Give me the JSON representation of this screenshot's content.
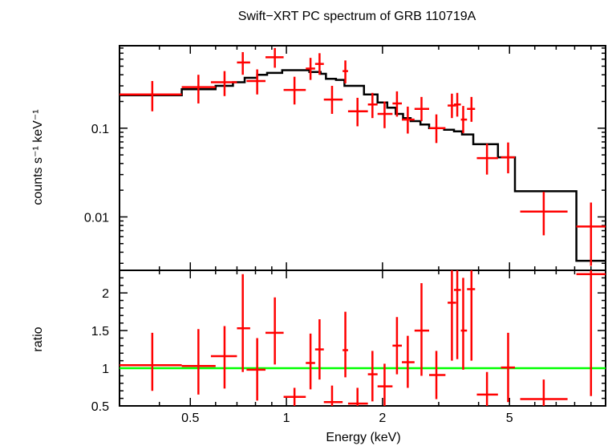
{
  "title": "Swift−XRT PC spectrum of GRB 110719A",
  "colors": {
    "data": "#ff0000",
    "model": "#000000",
    "unity": "#00ff00",
    "frame": "#000000"
  },
  "chart_data": [
    {
      "type": "scatter",
      "panel": "spectrum",
      "ylabel": "counts s⁻¹ keV⁻¹",
      "yscale": "log",
      "xscale": "log",
      "xlim": [
        0.3,
        10.0
      ],
      "ylim": [
        0.0025,
        0.85
      ],
      "yticks": [
        {
          "value": 0.01,
          "label": "0.01"
        },
        {
          "value": 0.1,
          "label": "0.1"
        }
      ],
      "series": [
        {
          "kind": "data",
          "points": [
            {
              "x": 0.38,
              "xlo": 0.3,
              "xhi": 0.47,
              "y": 0.24,
              "ylo": 0.155,
              "yhi": 0.34
            },
            {
              "x": 0.53,
              "xlo": 0.47,
              "xhi": 0.6,
              "y": 0.29,
              "ylo": 0.19,
              "yhi": 0.4
            },
            {
              "x": 0.64,
              "xlo": 0.58,
              "xhi": 0.7,
              "y": 0.33,
              "ylo": 0.23,
              "yhi": 0.44
            },
            {
              "x": 0.73,
              "xlo": 0.7,
              "xhi": 0.77,
              "y": 0.55,
              "ylo": 0.4,
              "yhi": 0.72
            },
            {
              "x": 0.81,
              "xlo": 0.75,
              "xhi": 0.86,
              "y": 0.34,
              "ylo": 0.24,
              "yhi": 0.46
            },
            {
              "x": 0.92,
              "xlo": 0.86,
              "xhi": 0.98,
              "y": 0.63,
              "ylo": 0.48,
              "yhi": 0.8
            },
            {
              "x": 1.06,
              "xlo": 0.98,
              "xhi": 1.15,
              "y": 0.27,
              "ylo": 0.185,
              "yhi": 0.38
            },
            {
              "x": 1.19,
              "xlo": 1.15,
              "xhi": 1.23,
              "y": 0.47,
              "ylo": 0.35,
              "yhi": 0.62
            },
            {
              "x": 1.27,
              "xlo": 1.23,
              "xhi": 1.31,
              "y": 0.53,
              "ylo": 0.4,
              "yhi": 0.7
            },
            {
              "x": 1.39,
              "xlo": 1.31,
              "xhi": 1.5,
              "y": 0.21,
              "ylo": 0.145,
              "yhi": 0.3
            },
            {
              "x": 1.53,
              "xlo": 1.5,
              "xhi": 1.56,
              "y": 0.44,
              "ylo": 0.32,
              "yhi": 0.58
            },
            {
              "x": 1.67,
              "xlo": 1.56,
              "xhi": 1.8,
              "y": 0.155,
              "ylo": 0.105,
              "yhi": 0.22
            },
            {
              "x": 1.86,
              "xlo": 1.8,
              "xhi": 1.93,
              "y": 0.185,
              "ylo": 0.13,
              "yhi": 0.25
            },
            {
              "x": 2.03,
              "xlo": 1.93,
              "xhi": 2.15,
              "y": 0.145,
              "ylo": 0.1,
              "yhi": 0.2
            },
            {
              "x": 2.22,
              "xlo": 2.15,
              "xhi": 2.3,
              "y": 0.19,
              "ylo": 0.135,
              "yhi": 0.26
            },
            {
              "x": 2.4,
              "xlo": 2.3,
              "xhi": 2.52,
              "y": 0.125,
              "ylo": 0.087,
              "yhi": 0.175
            },
            {
              "x": 2.65,
              "xlo": 2.52,
              "xhi": 2.8,
              "y": 0.165,
              "ylo": 0.12,
              "yhi": 0.225
            },
            {
              "x": 2.95,
              "xlo": 2.8,
              "xhi": 3.15,
              "y": 0.1,
              "ylo": 0.068,
              "yhi": 0.143
            },
            {
              "x": 3.3,
              "xlo": 3.2,
              "xhi": 3.4,
              "y": 0.18,
              "ylo": 0.13,
              "yhi": 0.245
            },
            {
              "x": 3.43,
              "xlo": 3.35,
              "xhi": 3.52,
              "y": 0.185,
              "ylo": 0.135,
              "yhi": 0.25
            },
            {
              "x": 3.58,
              "xlo": 3.52,
              "xhi": 3.68,
              "y": 0.125,
              "ylo": 0.088,
              "yhi": 0.178
            },
            {
              "x": 3.8,
              "xlo": 3.68,
              "xhi": 3.9,
              "y": 0.165,
              "ylo": 0.118,
              "yhi": 0.225
            },
            {
              "x": 4.25,
              "xlo": 3.95,
              "xhi": 4.6,
              "y": 0.046,
              "ylo": 0.03,
              "yhi": 0.067
            },
            {
              "x": 4.95,
              "xlo": 4.7,
              "xhi": 5.2,
              "y": 0.047,
              "ylo": 0.031,
              "yhi": 0.069
            },
            {
              "x": 6.4,
              "xlo": 5.4,
              "xhi": 7.6,
              "y": 0.0115,
              "ylo": 0.0062,
              "yhi": 0.0192
            },
            {
              "x": 9.0,
              "xlo": 8.1,
              "xhi": 10.0,
              "y": 0.0078,
              "ylo": 0.0028,
              "yhi": 0.0145
            }
          ]
        },
        {
          "kind": "model",
          "steps": [
            {
              "xlo": 0.3,
              "xhi": 0.47,
              "y": 0.235
            },
            {
              "xlo": 0.47,
              "xhi": 0.6,
              "y": 0.275
            },
            {
              "xlo": 0.6,
              "xhi": 0.68,
              "y": 0.3
            },
            {
              "xlo": 0.68,
              "xhi": 0.74,
              "y": 0.33
            },
            {
              "xlo": 0.74,
              "xhi": 0.81,
              "y": 0.37
            },
            {
              "xlo": 0.81,
              "xhi": 0.87,
              "y": 0.4
            },
            {
              "xlo": 0.87,
              "xhi": 0.97,
              "y": 0.42
            },
            {
              "xlo": 0.97,
              "xhi": 1.18,
              "y": 0.45
            },
            {
              "xlo": 1.18,
              "xhi": 1.28,
              "y": 0.43
            },
            {
              "xlo": 1.28,
              "xhi": 1.33,
              "y": 0.41
            },
            {
              "xlo": 1.33,
              "xhi": 1.43,
              "y": 0.36
            },
            {
              "xlo": 1.43,
              "xhi": 1.52,
              "y": 0.35
            },
            {
              "xlo": 1.52,
              "xhi": 1.75,
              "y": 0.3
            },
            {
              "xlo": 1.75,
              "xhi": 1.93,
              "y": 0.24
            },
            {
              "xlo": 1.93,
              "xhi": 2.07,
              "y": 0.195
            },
            {
              "xlo": 2.07,
              "xhi": 2.2,
              "y": 0.17
            },
            {
              "xlo": 2.2,
              "xhi": 2.32,
              "y": 0.145
            },
            {
              "xlo": 2.32,
              "xhi": 2.45,
              "y": 0.13
            },
            {
              "xlo": 2.45,
              "xhi": 2.63,
              "y": 0.12
            },
            {
              "xlo": 2.63,
              "xhi": 2.8,
              "y": 0.11
            },
            {
              "xlo": 2.8,
              "xhi": 3.12,
              "y": 0.1
            },
            {
              "xlo": 3.12,
              "xhi": 3.35,
              "y": 0.096
            },
            {
              "xlo": 3.35,
              "xhi": 3.55,
              "y": 0.092
            },
            {
              "xlo": 3.55,
              "xhi": 3.85,
              "y": 0.085
            },
            {
              "xlo": 3.85,
              "xhi": 4.6,
              "y": 0.066
            },
            {
              "xlo": 4.6,
              "xhi": 5.2,
              "y": 0.047
            },
            {
              "xlo": 5.2,
              "xhi": 8.1,
              "y": 0.0195
            },
            {
              "xlo": 8.1,
              "xhi": 10.0,
              "y": 0.0032
            }
          ]
        }
      ]
    },
    {
      "type": "scatter",
      "panel": "ratio",
      "xlabel": "Energy (keV)",
      "ylabel": "ratio",
      "xscale": "log",
      "xlim": [
        0.3,
        10.0
      ],
      "ylim": [
        0.5,
        2.3
      ],
      "xticks": [
        {
          "value": 0.5,
          "label": "0.5"
        },
        {
          "value": 1,
          "label": "1"
        },
        {
          "value": 2,
          "label": "2"
        },
        {
          "value": 5,
          "label": "5"
        }
      ],
      "yticks": [
        {
          "value": 0.5,
          "label": "0.5"
        },
        {
          "value": 1,
          "label": "1"
        },
        {
          "value": 1.5,
          "label": "1.5"
        },
        {
          "value": 2,
          "label": "2"
        }
      ],
      "reference_line": 1,
      "points": [
        {
          "x": 0.38,
          "xlo": 0.3,
          "xhi": 0.47,
          "y": 1.04,
          "ylo": 0.7,
          "yhi": 1.47
        },
        {
          "x": 0.53,
          "xlo": 0.47,
          "xhi": 0.6,
          "y": 1.03,
          "ylo": 0.65,
          "yhi": 1.52
        },
        {
          "x": 0.64,
          "xlo": 0.58,
          "xhi": 0.7,
          "y": 1.16,
          "ylo": 0.73,
          "yhi": 1.56
        },
        {
          "x": 0.73,
          "xlo": 0.7,
          "xhi": 0.77,
          "y": 1.53,
          "ylo": 0.95,
          "yhi": 2.25
        },
        {
          "x": 0.81,
          "xlo": 0.75,
          "xhi": 0.86,
          "y": 0.98,
          "ylo": 0.57,
          "yhi": 1.4
        },
        {
          "x": 0.92,
          "xlo": 0.86,
          "xhi": 0.98,
          "y": 1.47,
          "ylo": 1.05,
          "yhi": 1.94
        },
        {
          "x": 1.06,
          "xlo": 0.98,
          "xhi": 1.15,
          "y": 0.62,
          "ylo": 0.5,
          "yhi": 0.74
        },
        {
          "x": 1.19,
          "xlo": 1.15,
          "xhi": 1.23,
          "y": 1.07,
          "ylo": 0.72,
          "yhi": 1.46
        },
        {
          "x": 1.27,
          "xlo": 1.23,
          "xhi": 1.31,
          "y": 1.25,
          "ylo": 0.85,
          "yhi": 1.65
        },
        {
          "x": 1.39,
          "xlo": 1.31,
          "xhi": 1.5,
          "y": 0.55,
          "ylo": 0.5,
          "yhi": 0.77
        },
        {
          "x": 1.53,
          "xlo": 1.5,
          "xhi": 1.56,
          "y": 1.24,
          "ylo": 0.88,
          "yhi": 1.75
        },
        {
          "x": 1.67,
          "xlo": 1.56,
          "xhi": 1.8,
          "y": 0.53,
          "ylo": 0.5,
          "yhi": 0.74
        },
        {
          "x": 1.86,
          "xlo": 1.8,
          "xhi": 1.93,
          "y": 0.92,
          "ylo": 0.56,
          "yhi": 1.23
        },
        {
          "x": 2.03,
          "xlo": 1.93,
          "xhi": 2.15,
          "y": 0.76,
          "ylo": 0.5,
          "yhi": 1.06
        },
        {
          "x": 2.22,
          "xlo": 2.15,
          "xhi": 2.3,
          "y": 1.3,
          "ylo": 0.92,
          "yhi": 1.68
        },
        {
          "x": 2.4,
          "xlo": 2.3,
          "xhi": 2.52,
          "y": 1.08,
          "ylo": 0.74,
          "yhi": 1.43
        },
        {
          "x": 2.65,
          "xlo": 2.52,
          "xhi": 2.8,
          "y": 1.5,
          "ylo": 0.9,
          "yhi": 2.13
        },
        {
          "x": 2.95,
          "xlo": 2.8,
          "xhi": 3.15,
          "y": 0.91,
          "ylo": 0.59,
          "yhi": 1.23
        },
        {
          "x": 3.3,
          "xlo": 3.2,
          "xhi": 3.4,
          "y": 1.87,
          "ylo": 1.1,
          "yhi": 2.3
        },
        {
          "x": 3.43,
          "xlo": 3.35,
          "xhi": 3.52,
          "y": 2.04,
          "ylo": 1.12,
          "yhi": 2.3
        },
        {
          "x": 3.58,
          "xlo": 3.52,
          "xhi": 3.68,
          "y": 1.5,
          "ylo": 0.98,
          "yhi": 2.2
        },
        {
          "x": 3.8,
          "xlo": 3.68,
          "xhi": 3.9,
          "y": 2.05,
          "ylo": 1.1,
          "yhi": 2.3
        },
        {
          "x": 4.25,
          "xlo": 3.95,
          "xhi": 4.6,
          "y": 0.65,
          "ylo": 0.5,
          "yhi": 0.95
        },
        {
          "x": 4.95,
          "xlo": 4.7,
          "xhi": 5.2,
          "y": 1.01,
          "ylo": 0.55,
          "yhi": 1.47
        },
        {
          "x": 6.4,
          "xlo": 5.4,
          "xhi": 7.6,
          "y": 0.59,
          "ylo": 0.5,
          "yhi": 0.85
        },
        {
          "x": 9.0,
          "xlo": 8.1,
          "xhi": 10.0,
          "y": 2.25,
          "ylo": 0.63,
          "yhi": 2.3
        }
      ]
    }
  ]
}
